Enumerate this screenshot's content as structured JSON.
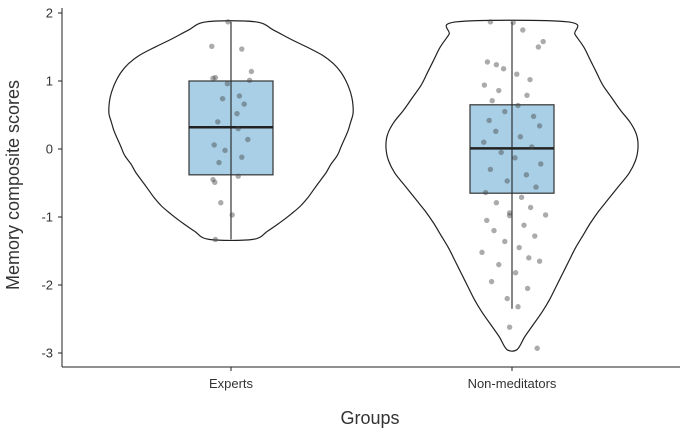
{
  "chart_data": {
    "type": "violin-box",
    "xlabel": "Groups",
    "ylabel": "Memory composite scores",
    "ylim": [
      -3.2,
      2.15
    ],
    "yticks": [
      -3,
      -2,
      -1,
      0,
      1,
      2
    ],
    "grid": false,
    "groups": [
      {
        "name": "Experts",
        "box": {
          "min": -1.33,
          "q1": -0.38,
          "median": 0.32,
          "q3": 1.0,
          "max": 1.87
        },
        "violin_range": [
          -1.33,
          1.87
        ],
        "violin_density": [
          0.18,
          0.3,
          0.4,
          0.49,
          0.57,
          0.63,
          0.68,
          0.73,
          0.78,
          0.82,
          0.87,
          0.9,
          0.93,
          0.96,
          0.98,
          1.0,
          1.0,
          0.99,
          0.97,
          0.94,
          0.9,
          0.84,
          0.75,
          0.62,
          0.48,
          0.35,
          0.2
        ],
        "points": [
          [
            -0.05,
            1.87
          ],
          [
            -0.32,
            1.51
          ],
          [
            0.18,
            1.47
          ],
          [
            0.34,
            1.14
          ],
          [
            -0.26,
            1.05
          ],
          [
            -0.3,
            1.04
          ],
          [
            0.31,
            1.01
          ],
          [
            -0.06,
            0.96
          ],
          [
            0.14,
            0.78
          ],
          [
            -0.14,
            0.74
          ],
          [
            0.22,
            0.66
          ],
          [
            0.1,
            0.52
          ],
          [
            -0.22,
            0.4
          ],
          [
            0.12,
            0.3
          ],
          [
            0.28,
            0.14
          ],
          [
            -0.28,
            0.06
          ],
          [
            -0.1,
            -0.02
          ],
          [
            0.18,
            -0.12
          ],
          [
            -0.2,
            -0.2
          ],
          [
            -0.3,
            -0.45
          ],
          [
            -0.27,
            -0.49
          ],
          [
            0.12,
            -0.4
          ],
          [
            -0.17,
            -0.79
          ],
          [
            0.02,
            -0.97
          ],
          [
            -0.26,
            -1.33
          ]
        ]
      },
      {
        "name": "Non-meditators",
        "box": {
          "min": -2.35,
          "q1": -0.65,
          "median": 0.01,
          "q3": 0.65,
          "max": 1.87
        },
        "violin_range": [
          -2.95,
          1.87
        ],
        "violin_density": [
          0.04,
          0.1,
          0.17,
          0.24,
          0.3,
          0.35,
          0.4,
          0.45,
          0.5,
          0.56,
          0.62,
          0.69,
          0.77,
          0.85,
          0.93,
          0.98,
          1.0,
          0.99,
          0.94,
          0.86,
          0.79,
          0.72,
          0.67,
          0.62,
          0.57,
          0.5,
          0.44
        ],
        "points": [
          [
            -0.36,
            1.87
          ],
          [
            0.02,
            1.86
          ],
          [
            0.18,
            1.75
          ],
          [
            0.52,
            1.58
          ],
          [
            0.44,
            1.5
          ],
          [
            -0.41,
            1.28
          ],
          [
            -0.26,
            1.24
          ],
          [
            -0.14,
            1.18
          ],
          [
            0.08,
            1.1
          ],
          [
            0.3,
            1.02
          ],
          [
            -0.46,
            0.94
          ],
          [
            -0.22,
            0.86
          ],
          [
            0.25,
            0.79
          ],
          [
            -0.33,
            0.71
          ],
          [
            0.1,
            0.64
          ],
          [
            -0.12,
            0.55
          ],
          [
            0.36,
            0.48
          ],
          [
            -0.38,
            0.42
          ],
          [
            0.46,
            0.34
          ],
          [
            -0.27,
            0.26
          ],
          [
            0.14,
            0.18
          ],
          [
            -0.47,
            0.1
          ],
          [
            0.33,
            0.03
          ],
          [
            -0.18,
            -0.05
          ],
          [
            0.05,
            -0.13
          ],
          [
            0.48,
            -0.22
          ],
          [
            -0.36,
            -0.3
          ],
          [
            0.24,
            -0.38
          ],
          [
            -0.08,
            -0.47
          ],
          [
            0.4,
            -0.56
          ],
          [
            -0.44,
            -0.64
          ],
          [
            0.16,
            -0.71
          ],
          [
            -0.26,
            -0.79
          ],
          [
            0.31,
            -0.86
          ],
          [
            -0.04,
            -0.94
          ],
          [
            -0.04,
            -0.98
          ],
          [
            0.56,
            -0.97
          ],
          [
            -0.42,
            -1.05
          ],
          [
            0.2,
            -1.12
          ],
          [
            -0.3,
            -1.2
          ],
          [
            0.38,
            -1.28
          ],
          [
            -0.12,
            -1.36
          ],
          [
            0.12,
            -1.45
          ],
          [
            -0.5,
            -1.52
          ],
          [
            0.28,
            -1.6
          ],
          [
            0.46,
            -1.65
          ],
          [
            -0.22,
            -1.7
          ],
          [
            0.06,
            -1.82
          ],
          [
            -0.34,
            -1.95
          ],
          [
            0.26,
            -2.05
          ],
          [
            -0.08,
            -2.2
          ],
          [
            0.1,
            -2.32
          ],
          [
            -0.04,
            -2.62
          ],
          [
            0.42,
            -2.93
          ]
        ]
      }
    ]
  }
}
